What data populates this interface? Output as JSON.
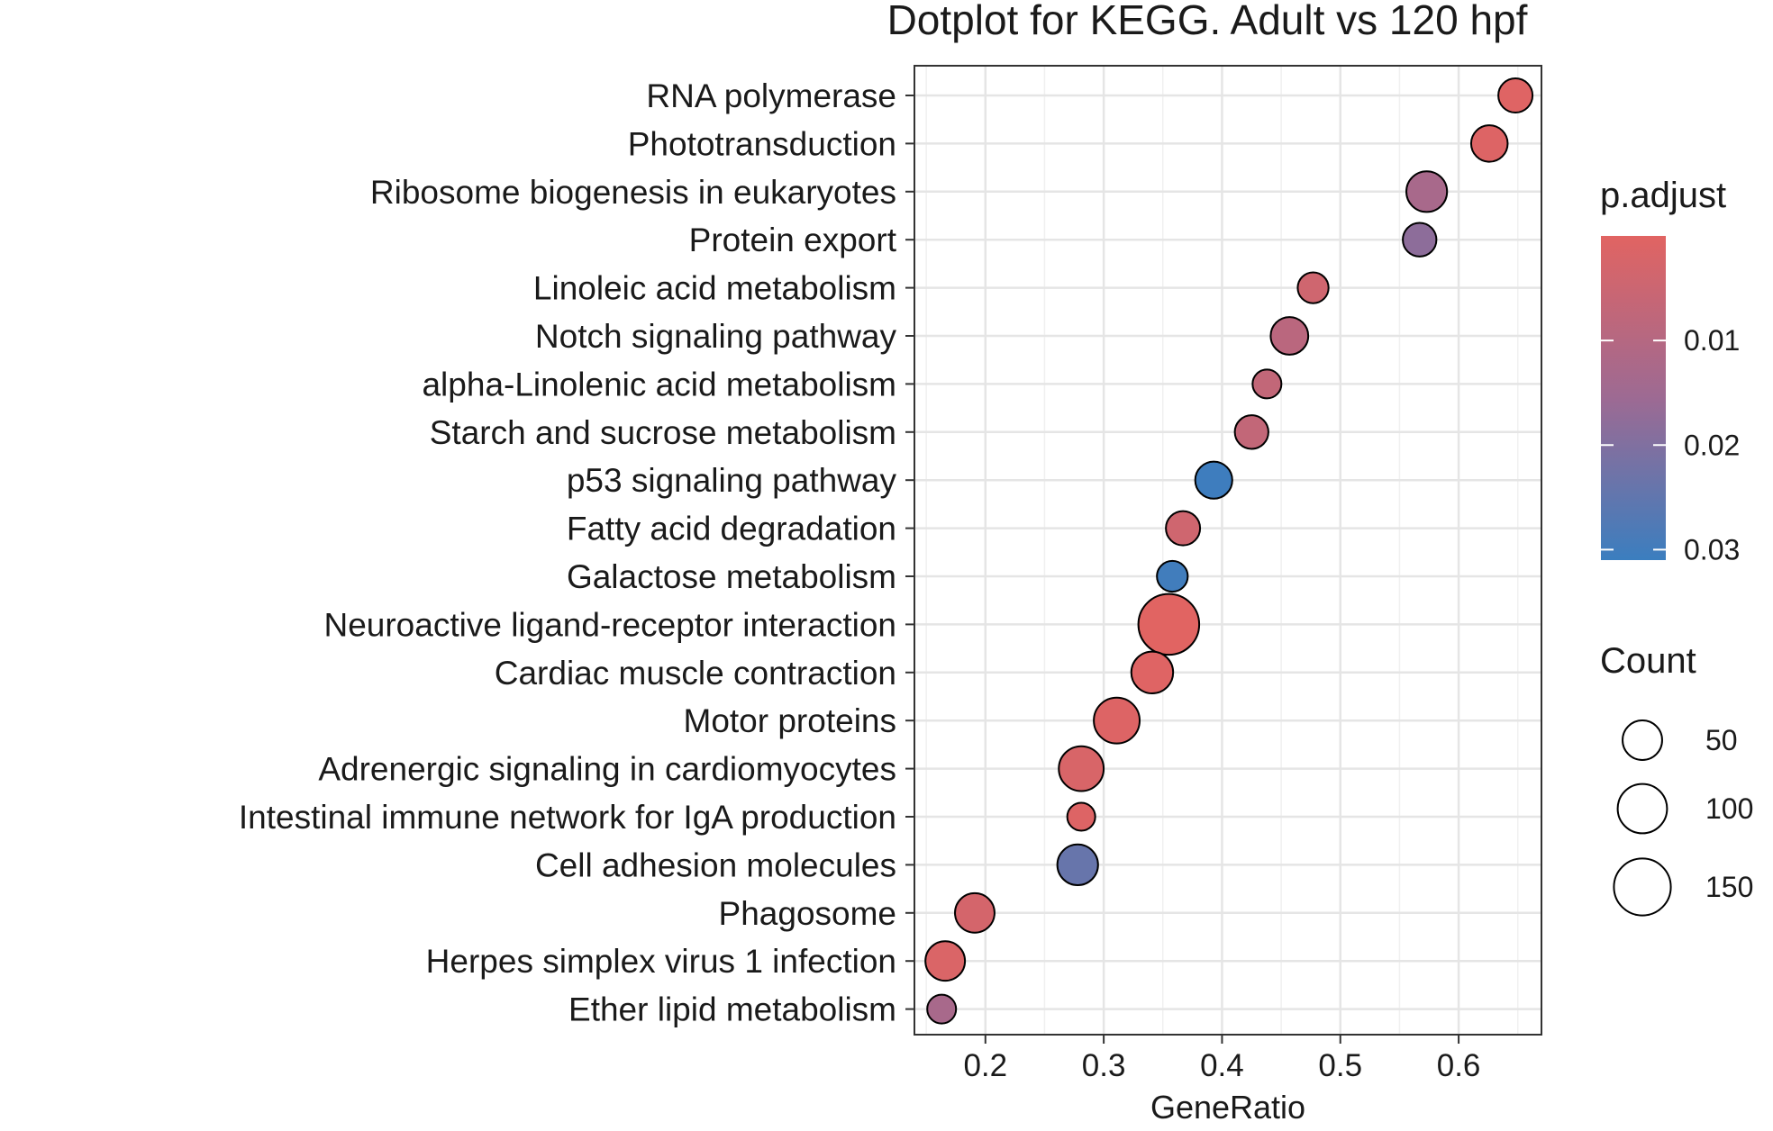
{
  "chart_data": {
    "type": "scatter",
    "title": "Dotplot for KEGG. Adult vs 120 hpf",
    "xlabel": "GeneRatio",
    "ylabel": "",
    "xlim": [
      0.14,
      0.67
    ],
    "x_ticks": [
      0.2,
      0.3,
      0.4,
      0.5,
      0.6
    ],
    "x_tick_labels": [
      "0.2",
      "0.3",
      "0.4",
      "0.5",
      "0.6"
    ],
    "grid": true,
    "legend_position": "right",
    "color_legend": {
      "title": "p.adjust",
      "range": [
        0.0,
        0.031
      ],
      "low_color": "#E16462",
      "mid_color": "#9D6A93",
      "high_color": "#3B7EBF",
      "ticks": [
        0.01,
        0.02,
        0.03
      ],
      "tick_labels": [
        "0.01",
        "0.02",
        "0.03"
      ]
    },
    "size_legend": {
      "title": "Count",
      "values": [
        50,
        100,
        150
      ],
      "labels": [
        "50",
        "100",
        "150"
      ]
    },
    "points": [
      {
        "term": "RNA polymerase",
        "x": 0.648,
        "count": 30,
        "padj": 0.0005
      },
      {
        "term": "Phototransduction",
        "x": 0.626,
        "count": 38,
        "padj": 0.0008
      },
      {
        "term": "Ribosome biogenesis in eukaryotes",
        "x": 0.573,
        "count": 55,
        "padj": 0.013
      },
      {
        "term": "Protein export",
        "x": 0.567,
        "count": 28,
        "padj": 0.018
      },
      {
        "term": "Linoleic acid metabolism",
        "x": 0.477,
        "count": 20,
        "padj": 0.004
      },
      {
        "term": "Notch signaling pathway",
        "x": 0.457,
        "count": 42,
        "padj": 0.009
      },
      {
        "term": "alpha-Linolenic acid metabolism",
        "x": 0.438,
        "count": 15,
        "padj": 0.007
      },
      {
        "term": "Starch and sucrose metabolism",
        "x": 0.425,
        "count": 28,
        "padj": 0.007
      },
      {
        "term": "p53 signaling pathway",
        "x": 0.393,
        "count": 40,
        "padj": 0.0305
      },
      {
        "term": "Fatty acid degradation",
        "x": 0.367,
        "count": 30,
        "padj": 0.004
      },
      {
        "term": "Galactose metabolism",
        "x": 0.358,
        "count": 20,
        "padj": 0.03
      },
      {
        "term": "Neuroactive ligand-receptor interaction",
        "x": 0.355,
        "count": 180,
        "padj": 0.0001
      },
      {
        "term": "Cardiac muscle contraction",
        "x": 0.341,
        "count": 60,
        "padj": 0.0005
      },
      {
        "term": "Motor proteins",
        "x": 0.311,
        "count": 80,
        "padj": 0.001
      },
      {
        "term": "Adrenergic signaling in cardiomyocytes",
        "x": 0.281,
        "count": 75,
        "padj": 0.002
      },
      {
        "term": "Intestinal immune network for IgA production",
        "x": 0.281,
        "count": 13,
        "padj": 0.0008
      },
      {
        "term": "Cell adhesion molecules",
        "x": 0.278,
        "count": 55,
        "padj": 0.024
      },
      {
        "term": "Phagosome",
        "x": 0.191,
        "count": 50,
        "padj": 0.003
      },
      {
        "term": "Herpes simplex virus 1 infection",
        "x": 0.166,
        "count": 50,
        "padj": 0.0015
      },
      {
        "term": "Ether lipid metabolism",
        "x": 0.163,
        "count": 15,
        "padj": 0.013
      }
    ]
  }
}
